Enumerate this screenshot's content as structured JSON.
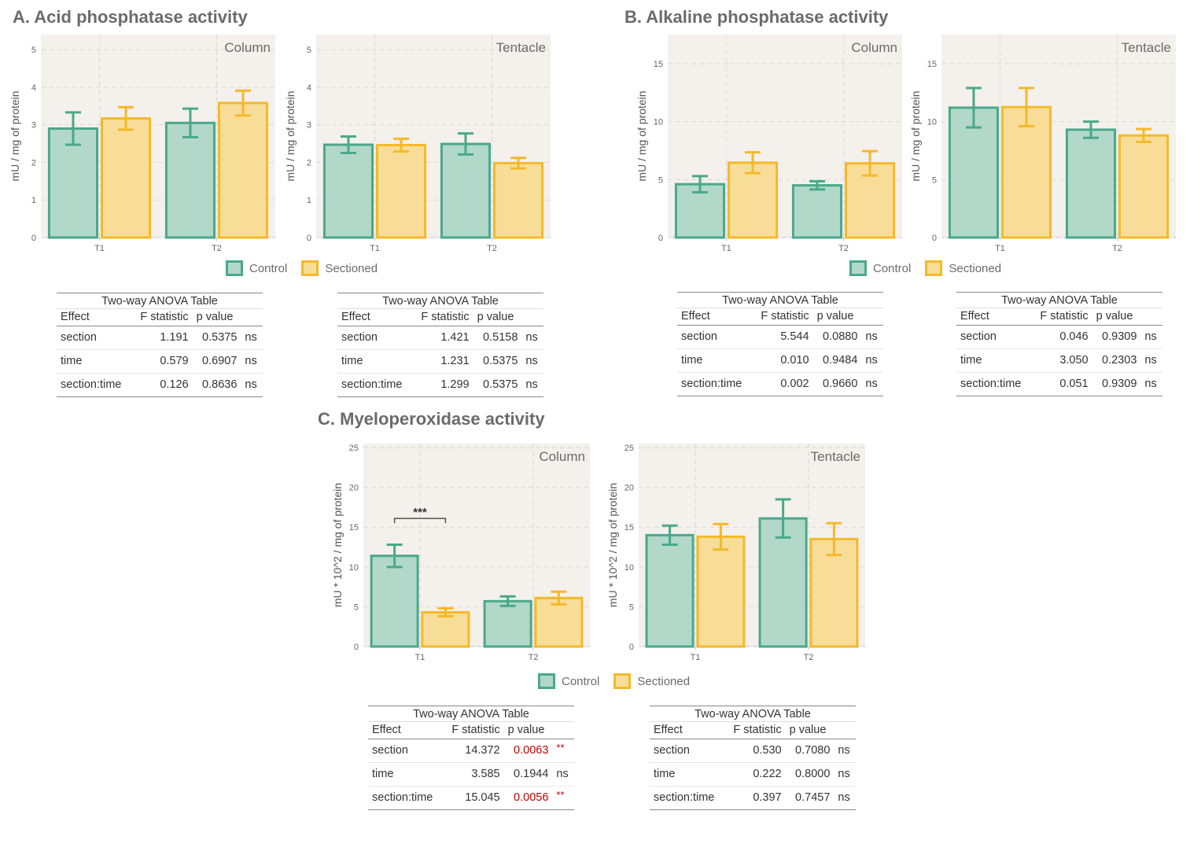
{
  "titles": {
    "a": "A. Acid phosphatase activity",
    "b": "B. Alkaline phosphatase activity",
    "c": "C. Myeloperoxidase activity"
  },
  "colors": {
    "control_stroke": "#4aa88c",
    "control_fill": "#b2d8c9",
    "sectioned_stroke": "#f5b928",
    "sectioned_fill": "#f8dd99",
    "panel_bg": "#f4f0eb",
    "significant_text": "#c00000"
  },
  "legend": {
    "control": "Control",
    "sectioned": "Sectioned"
  },
  "chart_data": [
    {
      "type": "bar",
      "panel": "Column",
      "categories": [
        "T1",
        "T2"
      ],
      "ylabel": "mU / mg  of protein",
      "ylim": [
        0,
        5.4
      ],
      "yticks": [
        0,
        1,
        2,
        3,
        4,
        5
      ],
      "series": [
        {
          "name": "Control",
          "values": [
            2.9,
            3.05
          ],
          "err": [
            0.43,
            0.38
          ]
        },
        {
          "name": "Sectioned",
          "values": [
            3.17,
            3.58
          ],
          "err": [
            0.3,
            0.33
          ]
        }
      ]
    },
    {
      "type": "bar",
      "panel": "Tentacle",
      "categories": [
        "T1",
        "T2"
      ],
      "ylabel": "mU / mg  of protein",
      "ylim": [
        0,
        5.4
      ],
      "yticks": [
        0,
        1,
        2,
        3,
        4,
        5
      ],
      "series": [
        {
          "name": "Control",
          "values": [
            2.47,
            2.49
          ],
          "err": [
            0.22,
            0.28
          ]
        },
        {
          "name": "Sectioned",
          "values": [
            2.46,
            1.98
          ],
          "err": [
            0.17,
            0.14
          ]
        }
      ]
    },
    {
      "type": "bar",
      "panel": "Column",
      "categories": [
        "T1",
        "T2"
      ],
      "ylabel": "mU / mg  of protein",
      "ylim": [
        0,
        17.5
      ],
      "yticks": [
        0,
        5,
        10,
        15
      ],
      "series": [
        {
          "name": "Control",
          "values": [
            4.6,
            4.5
          ],
          "err": [
            0.7,
            0.35
          ]
        },
        {
          "name": "Sectioned",
          "values": [
            6.45,
            6.4
          ],
          "err": [
            0.9,
            1.05
          ]
        }
      ]
    },
    {
      "type": "bar",
      "panel": "Tentacle",
      "categories": [
        "T1",
        "T2"
      ],
      "ylabel": "mU / mg  of protein",
      "ylim": [
        0,
        17.5
      ],
      "yticks": [
        0,
        5,
        10,
        15
      ],
      "series": [
        {
          "name": "Control",
          "values": [
            11.2,
            9.3
          ],
          "err": [
            1.7,
            0.7
          ]
        },
        {
          "name": "Sectioned",
          "values": [
            11.25,
            8.8
          ],
          "err": [
            1.65,
            0.55
          ]
        }
      ]
    },
    {
      "type": "bar",
      "panel": "Column",
      "categories": [
        "T1",
        "T2"
      ],
      "ylabel": "mU * 10^2 / mg  of protein",
      "ylim": [
        0,
        25.5
      ],
      "yticks": [
        0,
        5,
        10,
        15,
        20,
        25
      ],
      "series": [
        {
          "name": "Control",
          "values": [
            11.4,
            5.7
          ],
          "err": [
            1.4,
            0.6
          ]
        },
        {
          "name": "Sectioned",
          "values": [
            4.3,
            6.1
          ],
          "err": [
            0.5,
            0.8
          ]
        }
      ],
      "annotation": "***"
    },
    {
      "type": "bar",
      "panel": "Tentacle",
      "categories": [
        "T1",
        "T2"
      ],
      "ylabel": "mU * 10^2 / mg  of protein",
      "ylim": [
        0,
        25.5
      ],
      "yticks": [
        0,
        5,
        10,
        15,
        20,
        25
      ],
      "series": [
        {
          "name": "Control",
          "values": [
            14.0,
            16.1
          ],
          "err": [
            1.2,
            2.4
          ]
        },
        {
          "name": "Sectioned",
          "values": [
            13.8,
            13.5
          ],
          "err": [
            1.6,
            2.0
          ]
        }
      ]
    }
  ],
  "tables": [
    {
      "caption": "Two-way ANOVA Table",
      "headers": [
        "Effect",
        "F statistic",
        "p value"
      ],
      "rows": [
        [
          "section",
          "1.191",
          "0.5375",
          "ns"
        ],
        [
          "time",
          "0.579",
          "0.6907",
          "ns"
        ],
        [
          "section:time",
          "0.126",
          "0.8636",
          "ns"
        ]
      ]
    },
    {
      "caption": "Two-way ANOVA Table",
      "headers": [
        "Effect",
        "F statistic",
        "p value"
      ],
      "rows": [
        [
          "section",
          "1.421",
          "0.5158",
          "ns"
        ],
        [
          "time",
          "1.231",
          "0.5375",
          "ns"
        ],
        [
          "section:time",
          "1.299",
          "0.5375",
          "ns"
        ]
      ]
    },
    {
      "caption": "Two-way ANOVA Table",
      "headers": [
        "Effect",
        "F statistic",
        "p value"
      ],
      "rows": [
        [
          "section",
          "5.544",
          "0.0880",
          "ns"
        ],
        [
          "time",
          "0.010",
          "0.9484",
          "ns"
        ],
        [
          "section:time",
          "0.002",
          "0.9660",
          "ns"
        ]
      ]
    },
    {
      "caption": "Two-way ANOVA Table",
      "headers": [
        "Effect",
        "F statistic",
        "p value"
      ],
      "rows": [
        [
          "section",
          "0.046",
          "0.9309",
          "ns"
        ],
        [
          "time",
          "3.050",
          "0.2303",
          "ns"
        ],
        [
          "section:time",
          "0.051",
          "0.9309",
          "ns"
        ]
      ]
    },
    {
      "caption": "Two-way ANOVA Table",
      "headers": [
        "Effect",
        "F statistic",
        "p value"
      ],
      "rows": [
        [
          "section",
          "14.372",
          "0.0063",
          "**"
        ],
        [
          "time",
          "3.585",
          "0.1944",
          "ns"
        ],
        [
          "section:time",
          "15.045",
          "0.0056",
          "**"
        ]
      ]
    },
    {
      "caption": "Two-way ANOVA Table",
      "headers": [
        "Effect",
        "F statistic",
        "p value"
      ],
      "rows": [
        [
          "section",
          "0.530",
          "0.7080",
          "ns"
        ],
        [
          "time",
          "0.222",
          "0.8000",
          "ns"
        ],
        [
          "section:time",
          "0.397",
          "0.7457",
          "ns"
        ]
      ]
    }
  ]
}
